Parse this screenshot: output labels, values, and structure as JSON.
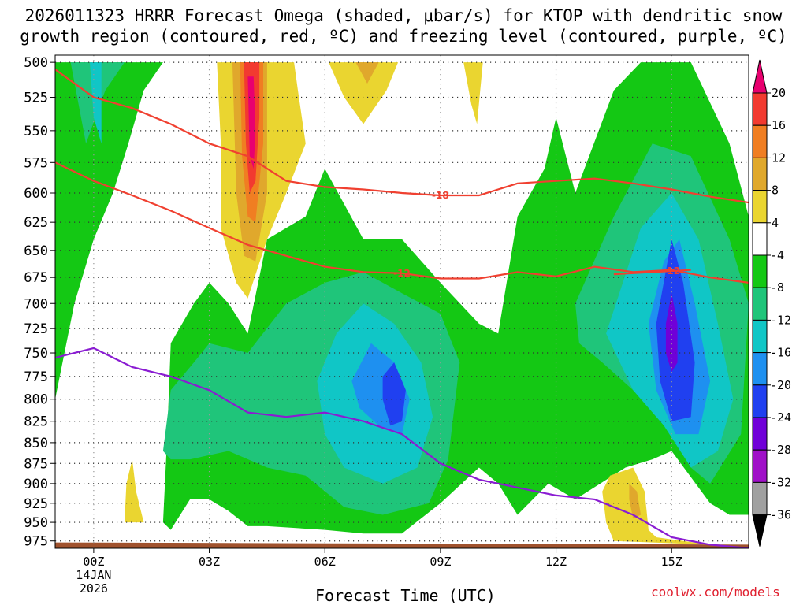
{
  "chart_data": {
    "type": "heatmap",
    "title_line1": "2026011323 HRRR Forecast Omega (shaded, μbar/s) for KTOP with dendritic snow",
    "title_line2": "growth region (contoured, red, ºC) and freezing level (contoured, purple, ºC)",
    "xlabel": "Forecast Time (UTC)",
    "credit": "coolwx.com/models",
    "x_range_hours": [
      -1.0,
      17.0
    ],
    "y_range_hpa": [
      985,
      495
    ],
    "y_ticks": [
      500,
      525,
      550,
      575,
      600,
      625,
      650,
      675,
      700,
      725,
      750,
      775,
      800,
      825,
      850,
      875,
      900,
      925,
      950,
      975
    ],
    "x_ticks": [
      {
        "hour": 0,
        "label": "00Z",
        "sub1": "14JAN",
        "sub2": "2026"
      },
      {
        "hour": 3,
        "label": "03Z"
      },
      {
        "hour": 6,
        "label": "06Z"
      },
      {
        "hour": 9,
        "label": "09Z"
      },
      {
        "hour": 12,
        "label": "12Z"
      },
      {
        "hour": 15,
        "label": "15Z"
      }
    ],
    "colorbar": {
      "levels": [
        "20",
        "16",
        "12",
        "8",
        "4",
        "-4",
        "-8",
        "-12",
        "-16",
        "-20",
        "-24",
        "-28",
        "-32",
        "-36"
      ],
      "colors": [
        "#e8006f",
        "#f23a30",
        "#f07e22",
        "#e0a82c",
        "#ead530",
        "#ffffff",
        "#14c814",
        "#1fc57a",
        "#10c6c6",
        "#1e90f0",
        "#2040f0",
        "#7000d8",
        "#a010c8",
        "#a0a0a0",
        "#000000"
      ]
    },
    "omega_regions": [
      {
        "name": "rising-west",
        "level": -8,
        "pts": [
          [
            -1,
            800
          ],
          [
            -0.5,
            700
          ],
          [
            0,
            640
          ],
          [
            0.5,
            600
          ],
          [
            0.9,
            560
          ],
          [
            1.3,
            520
          ],
          [
            1.8,
            500
          ],
          [
            -1,
            500
          ]
        ]
      },
      {
        "name": "rising-west-inner",
        "level": -12,
        "pts": [
          [
            -0.6,
            500
          ],
          [
            -0.2,
            560
          ],
          [
            0.3,
            520
          ],
          [
            0.8,
            500
          ]
        ]
      },
      {
        "name": "rising-west-core",
        "level": -16,
        "pts": [
          [
            -0.1,
            500
          ],
          [
            0,
            540
          ],
          [
            0.2,
            560
          ],
          [
            0.2,
            500
          ]
        ]
      },
      {
        "name": "rising-main",
        "level": -8,
        "pts": [
          [
            1.8,
            950
          ],
          [
            1.9,
            850
          ],
          [
            2,
            740
          ],
          [
            2.6,
            700
          ],
          [
            3,
            680
          ],
          [
            3.5,
            700
          ],
          [
            4,
            730
          ],
          [
            4.5,
            640
          ],
          [
            5.5,
            620
          ],
          [
            6,
            580
          ],
          [
            7,
            640
          ],
          [
            8,
            640
          ],
          [
            9,
            680
          ],
          [
            10,
            720
          ],
          [
            10.5,
            730
          ],
          [
            11,
            620
          ],
          [
            11.7,
            580
          ],
          [
            12,
            540
          ],
          [
            12.5,
            600
          ],
          [
            13.5,
            520
          ],
          [
            14.2,
            500
          ],
          [
            15.5,
            500
          ],
          [
            16.5,
            560
          ],
          [
            17,
            620
          ],
          [
            17,
            940
          ],
          [
            16.5,
            940
          ],
          [
            16,
            925
          ],
          [
            15,
            860
          ],
          [
            14.5,
            870
          ],
          [
            13.8,
            880
          ],
          [
            12.5,
            920
          ],
          [
            11.8,
            900
          ],
          [
            11,
            940
          ],
          [
            10.5,
            900
          ],
          [
            10,
            880
          ],
          [
            9,
            925
          ],
          [
            8,
            965
          ],
          [
            7,
            965
          ],
          [
            6,
            960
          ],
          [
            4.5,
            955
          ],
          [
            4,
            955
          ],
          [
            3.5,
            935
          ],
          [
            3,
            920
          ],
          [
            2.5,
            920
          ],
          [
            2,
            960
          ]
        ]
      },
      {
        "name": "rising-main-mid",
        "level": -12,
        "pts": [
          [
            1.8,
            860
          ],
          [
            2,
            790
          ],
          [
            2.6,
            760
          ],
          [
            3,
            740
          ],
          [
            4,
            750
          ],
          [
            5,
            700
          ],
          [
            6,
            680
          ],
          [
            7,
            670
          ],
          [
            8,
            690
          ],
          [
            9,
            710
          ],
          [
            9.5,
            760
          ],
          [
            9.2,
            870
          ],
          [
            8.7,
            925
          ],
          [
            7.5,
            940
          ],
          [
            6.5,
            930
          ],
          [
            5.5,
            890
          ],
          [
            4.5,
            880
          ],
          [
            3.5,
            860
          ],
          [
            2.5,
            870
          ],
          [
            2,
            870
          ]
        ]
      },
      {
        "name": "rising-main-mid-east",
        "level": -12,
        "pts": [
          [
            12.5,
            700
          ],
          [
            13.5,
            620
          ],
          [
            14.5,
            560
          ],
          [
            15.5,
            570
          ],
          [
            16.5,
            640
          ],
          [
            17,
            700
          ],
          [
            16.8,
            840
          ],
          [
            16,
            900
          ],
          [
            15.5,
            880
          ],
          [
            14.8,
            820
          ],
          [
            14,
            790
          ],
          [
            13.2,
            760
          ],
          [
            12.6,
            740
          ]
        ]
      },
      {
        "name": "rising-core-mid",
        "level": -16,
        "pts": [
          [
            5.8,
            780
          ],
          [
            6.3,
            730
          ],
          [
            7,
            700
          ],
          [
            7.8,
            720
          ],
          [
            8.5,
            760
          ],
          [
            8.8,
            820
          ],
          [
            8.4,
            880
          ],
          [
            7.5,
            900
          ],
          [
            6.5,
            880
          ],
          [
            6,
            840
          ]
        ]
      },
      {
        "name": "rising-core-east",
        "level": -16,
        "pts": [
          [
            13.3,
            730
          ],
          [
            14.2,
            630
          ],
          [
            15,
            600
          ],
          [
            15.7,
            640
          ],
          [
            16.2,
            720
          ],
          [
            16.6,
            800
          ],
          [
            16.2,
            860
          ],
          [
            15.5,
            880
          ],
          [
            14.8,
            830
          ],
          [
            14,
            790
          ]
        ]
      },
      {
        "name": "rising-peak-mid",
        "level": -20,
        "pts": [
          [
            6.7,
            780
          ],
          [
            7.2,
            740
          ],
          [
            7.8,
            760
          ],
          [
            8.2,
            800
          ],
          [
            8.0,
            840
          ],
          [
            7.4,
            830
          ],
          [
            6.9,
            810
          ]
        ]
      },
      {
        "name": "rising-peak-east",
        "level": -20,
        "pts": [
          [
            14.4,
            720
          ],
          [
            14.8,
            660
          ],
          [
            15.2,
            640
          ],
          [
            15.6,
            700
          ],
          [
            16,
            780
          ],
          [
            15.7,
            840
          ],
          [
            15.1,
            840
          ],
          [
            14.6,
            790
          ]
        ]
      },
      {
        "name": "rising-max-mid",
        "level": -24,
        "pts": [
          [
            7.5,
            775
          ],
          [
            7.8,
            760
          ],
          [
            8.1,
            790
          ],
          [
            8.0,
            825
          ],
          [
            7.7,
            830
          ],
          [
            7.5,
            800
          ]
        ]
      },
      {
        "name": "rising-max-east",
        "level": -24,
        "pts": [
          [
            14.6,
            720
          ],
          [
            15,
            640
          ],
          [
            15.3,
            680
          ],
          [
            15.6,
            760
          ],
          [
            15.5,
            820
          ],
          [
            15.0,
            825
          ],
          [
            14.7,
            780
          ]
        ]
      },
      {
        "name": "rising-extreme-east",
        "level": -28,
        "pts": [
          [
            14.85,
            720
          ],
          [
            15,
            690
          ],
          [
            15.15,
            720
          ],
          [
            15.15,
            760
          ],
          [
            15.0,
            770
          ],
          [
            14.85,
            750
          ]
        ]
      },
      {
        "name": "sinking-plume",
        "level": 4,
        "pts": [
          [
            3.2,
            500
          ],
          [
            3.3,
            560
          ],
          [
            3.3,
            630
          ],
          [
            3.7,
            680
          ],
          [
            4,
            695
          ],
          [
            4.5,
            640
          ],
          [
            5,
            600
          ],
          [
            5.5,
            560
          ],
          [
            5.3,
            520
          ],
          [
            5.2,
            500
          ]
        ]
      },
      {
        "name": "sinking-plume-mid",
        "level": 8,
        "pts": [
          [
            3.6,
            500
          ],
          [
            3.7,
            600
          ],
          [
            3.9,
            655
          ],
          [
            4.2,
            660
          ],
          [
            4.5,
            600
          ],
          [
            4.5,
            500
          ]
        ]
      },
      {
        "name": "sinking-plume-core",
        "level": 12,
        "pts": [
          [
            3.8,
            500
          ],
          [
            3.85,
            570
          ],
          [
            4,
            620
          ],
          [
            4.2,
            625
          ],
          [
            4.4,
            560
          ],
          [
            4.4,
            500
          ]
        ]
      },
      {
        "name": "sinking-plume-peak",
        "level": 16,
        "pts": [
          [
            3.9,
            500
          ],
          [
            3.95,
            560
          ],
          [
            4.05,
            600
          ],
          [
            4.2,
            590
          ],
          [
            4.3,
            540
          ],
          [
            4.3,
            500
          ]
        ]
      },
      {
        "name": "sinking-plume-max",
        "level": 20,
        "pts": [
          [
            4.0,
            510
          ],
          [
            4.05,
            570
          ],
          [
            4.15,
            580
          ],
          [
            4.2,
            550
          ],
          [
            4.15,
            510
          ]
        ]
      },
      {
        "name": "sinking-top-a",
        "level": 4,
        "pts": [
          [
            6.1,
            500
          ],
          [
            6.5,
            525
          ],
          [
            7,
            545
          ],
          [
            7.6,
            520
          ],
          [
            7.9,
            500
          ]
        ]
      },
      {
        "name": "sinking-top-a-core",
        "level": 8,
        "pts": [
          [
            6.8,
            500
          ],
          [
            7.1,
            515
          ],
          [
            7.4,
            500
          ]
        ]
      },
      {
        "name": "sinking-top-b",
        "level": 4,
        "pts": [
          [
            9.6,
            500
          ],
          [
            9.8,
            530
          ],
          [
            9.95,
            545
          ],
          [
            10.1,
            500
          ]
        ]
      },
      {
        "name": "sinking-sfc-west",
        "level": 4,
        "pts": [
          [
            0.8,
            950
          ],
          [
            0.85,
            900
          ],
          [
            1.0,
            870
          ],
          [
            1.1,
            910
          ],
          [
            1.3,
            950
          ]
        ]
      },
      {
        "name": "sinking-sfc-east",
        "level": 4,
        "pts": [
          [
            13.2,
            910
          ],
          [
            13.4,
            890
          ],
          [
            14.0,
            880
          ],
          [
            14.3,
            910
          ],
          [
            14.4,
            960
          ],
          [
            14.6,
            970
          ],
          [
            16,
            980
          ],
          [
            13.5,
            975
          ],
          [
            13.3,
            950
          ]
        ]
      },
      {
        "name": "sinking-sfc-east-core",
        "level": 8,
        "pts": [
          [
            13.9,
            900
          ],
          [
            14.1,
            910
          ],
          [
            14.2,
            940
          ],
          [
            14.0,
            945
          ],
          [
            13.9,
            920
          ]
        ]
      },
      {
        "name": "white-dot",
        "level": 0,
        "pts": [
          [
            -0.1,
            915
          ],
          [
            0.05,
            910
          ],
          [
            0.1,
            920
          ],
          [
            -0.05,
            925
          ]
        ]
      }
    ],
    "isotherms": [
      {
        "label": "-18",
        "color": "#f04030",
        "x": [
          -1,
          0,
          1,
          2,
          3,
          4,
          5,
          6,
          7,
          8,
          9,
          10,
          11,
          12,
          13,
          14,
          15,
          16,
          17
        ],
        "y_hpa": [
          505,
          525,
          533,
          545,
          560,
          570,
          590,
          595,
          597,
          600,
          602,
          602,
          592,
          590,
          588,
          592,
          597,
          603,
          608
        ],
        "label_at_hour": 9.0
      },
      {
        "label": "-12",
        "color": "#f04030",
        "x": [
          -1,
          0,
          1,
          2,
          3,
          4,
          5,
          6,
          7,
          8,
          9,
          10,
          11,
          12,
          13,
          14,
          15,
          16,
          17
        ],
        "y_hpa": [
          575,
          590,
          602,
          615,
          630,
          645,
          655,
          665,
          670,
          671,
          676,
          676,
          670,
          674,
          665,
          670,
          668,
          675,
          680
        ],
        "label_at_hour": 8.0
      },
      {
        "label": "-12",
        "color": "#f04030",
        "x": [
          13.5,
          14.5,
          15.5
        ],
        "y_hpa": [
          672,
          670,
          668
        ],
        "label_at_hour": 15.0
      },
      {
        "label": "",
        "color": "#8a1cd2",
        "x": [
          -1,
          0,
          1,
          2,
          3,
          4,
          5,
          6,
          7,
          8,
          9,
          10,
          11,
          12,
          13,
          14,
          15,
          16,
          17
        ],
        "y_hpa": [
          755,
          745,
          765,
          775,
          790,
          815,
          820,
          815,
          825,
          840,
          875,
          895,
          905,
          915,
          920,
          940,
          970,
          980,
          985
        ],
        "label_at_hour": null
      }
    ],
    "ground": {
      "color": "#a0522d",
      "top_hpa_west": 977,
      "top_hpa_east": 980
    }
  }
}
